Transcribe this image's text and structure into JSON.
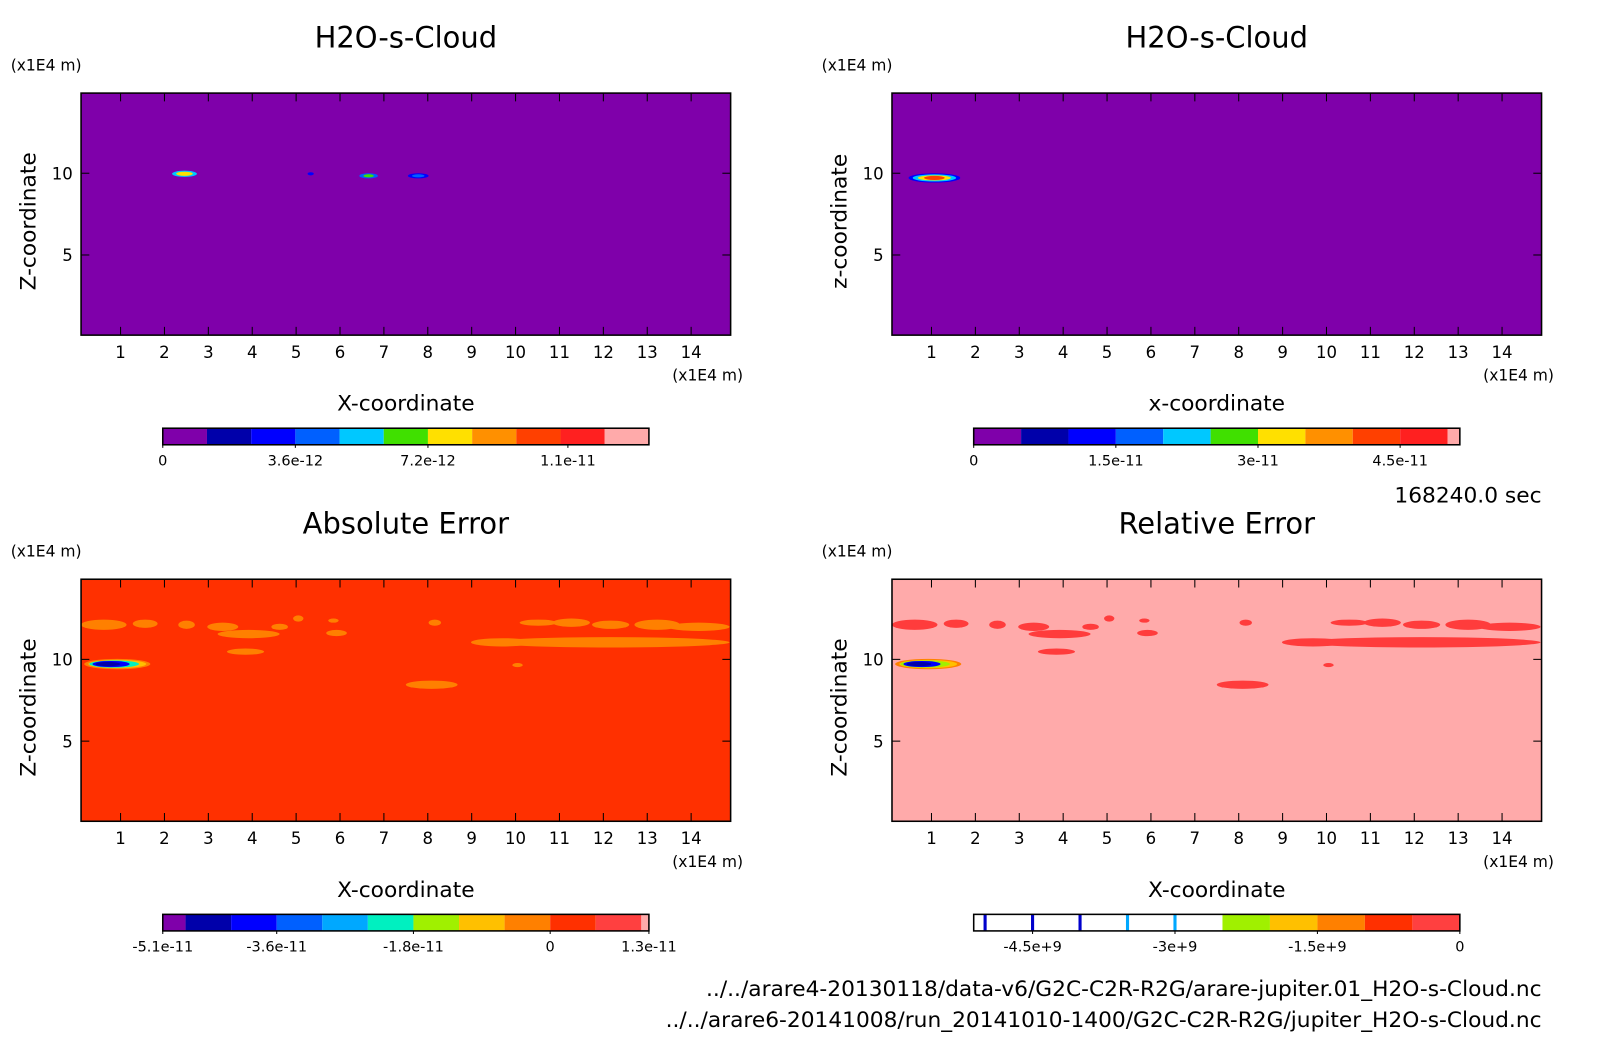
{
  "chart_data": [
    {
      "type": "contour",
      "title": "H2O-s-Cloud",
      "xlabel": "X-coordinate",
      "ylabel": "Z-coordinate",
      "xunit": "(x1E4 m)",
      "yunit": "(x1E4 m)",
      "xlim": [
        0.1,
        14.9
      ],
      "ylim": [
        0.1,
        14.9
      ],
      "xticks": [
        1,
        2,
        3,
        4,
        5,
        6,
        7,
        8,
        9,
        10,
        11,
        12,
        13,
        14
      ],
      "yticks": [
        5,
        10
      ],
      "field_color": "#7f00aa",
      "levels": [
        0,
        1.2e-12,
        2.4e-12,
        3.6e-12,
        4.8e-12,
        6e-12,
        7.2e-12,
        8.4e-12,
        9.6e-12,
        1.08e-11,
        1.2e-11,
        1.32e-11
      ],
      "colors": [
        "#7f00aa",
        "#0000aa",
        "#0000ff",
        "#0060ff",
        "#00c8ff",
        "#40e000",
        "#ffe000",
        "#ff9000",
        "#ff4000",
        "#ff2020",
        "#ffaaaa"
      ],
      "colorbar_ticks": [
        0,
        3.6e-12,
        7.2e-12,
        1.1e-11
      ]
    },
    {
      "type": "contour",
      "title": "H2O-s-Cloud",
      "xlabel": "x-coordinate",
      "ylabel": "z-coordinate",
      "xunit": "(x1E4 m)",
      "yunit": "(x1E4 m)",
      "xlim": [
        0.1,
        14.9
      ],
      "ylim": [
        0.1,
        14.9
      ],
      "xticks": [
        1,
        2,
        3,
        4,
        5,
        6,
        7,
        8,
        9,
        10,
        11,
        12,
        13,
        14
      ],
      "yticks": [
        5,
        10
      ],
      "field_color": "#7f00aa",
      "levels": [
        0,
        5e-12,
        1e-11,
        1.5e-11,
        2e-11,
        2.5e-11,
        3e-11,
        3.5e-11,
        4e-11,
        4.5e-11,
        5e-11,
        5.13e-11
      ],
      "colors": [
        "#7f00aa",
        "#0000aa",
        "#0000ff",
        "#0060ff",
        "#00c8ff",
        "#40e000",
        "#ffe000",
        "#ff9000",
        "#ff4000",
        "#ff2020",
        "#ffaaaa"
      ],
      "colorbar_ticks": [
        0,
        1.5e-11,
        3e-11,
        4.5e-11
      ]
    },
    {
      "type": "contour",
      "title": "Absolute Error",
      "xlabel": "X-coordinate",
      "ylabel": "Z-coordinate",
      "xunit": "(x1E4 m)",
      "yunit": "(x1E4 m)",
      "xlim": [
        0.1,
        14.9
      ],
      "ylim": [
        0.1,
        14.9
      ],
      "xticks": [
        1,
        2,
        3,
        4,
        5,
        6,
        7,
        8,
        9,
        10,
        11,
        12,
        13,
        14
      ],
      "yticks": [
        5,
        10
      ],
      "field_color": "#ff3000",
      "levels": [
        -5.1e-11,
        -4.8e-11,
        -4.2e-11,
        -3.6e-11,
        -3e-11,
        -2.4e-11,
        -1.8e-11,
        -1.2e-11,
        -6e-12,
        0,
        6e-12,
        1.2e-11,
        1.3e-11
      ],
      "colors": [
        "#7f00aa",
        "#0000aa",
        "#0000ff",
        "#0060ff",
        "#00a8ff",
        "#00f0c0",
        "#a0f000",
        "#ffc000",
        "#ff8000",
        "#ff3000",
        "#ff4040",
        "#ffaaaa"
      ],
      "colorbar_ticks": [
        -5.1e-11,
        -3.6e-11,
        -1.8e-11,
        0,
        1.3e-11
      ]
    },
    {
      "type": "contour",
      "title": "Relative Error",
      "xlabel": "X-coordinate",
      "ylabel": "Z-coordinate",
      "xunit": "(x1E4 m)",
      "yunit": "(x1E4 m)",
      "xlim": [
        0.1,
        14.9
      ],
      "ylim": [
        0.1,
        14.9
      ],
      "xticks": [
        1,
        2,
        3,
        4,
        5,
        6,
        7,
        8,
        9,
        10,
        11,
        12,
        13,
        14
      ],
      "yticks": [
        5,
        10
      ],
      "field_color": "#ffaaaa",
      "levels": [
        -5120000000.0,
        -5000000000.0,
        -4500000000.0,
        -4000000000.0,
        -3500000000.0,
        -3000000000.0,
        -2500000000.0,
        -2000000000.0,
        -1500000000.0,
        -1000000000.0,
        -500000000.0,
        0
      ],
      "colors": [
        "#ffffff",
        "#ffffff",
        "#ffffff",
        "#ffffff",
        "#ffffff",
        "#ffffff",
        "#a0f000",
        "#ffc000",
        "#ff8000",
        "#ff3000",
        "#ff4040"
      ],
      "colorbar_ticks": [
        {
          "value": -4500000000.0,
          "label": "-4.5e+9"
        },
        {
          "value": -3000000000.0,
          "label": "-3e+9"
        },
        {
          "value": -1500000000.0,
          "label": "-1.5e+9"
        },
        0
      ]
    }
  ],
  "time_label": "168240.0 sec",
  "files": [
    "../../arare4-20130118/data-v6/G2C-C2R-R2G/arare-jupiter.01_H2O-s-Cloud.nc",
    "../../arare6-20141008/run_20141010-1400/G2C-C2R-R2G/jupiter_H2O-s-Cloud.nc"
  ]
}
